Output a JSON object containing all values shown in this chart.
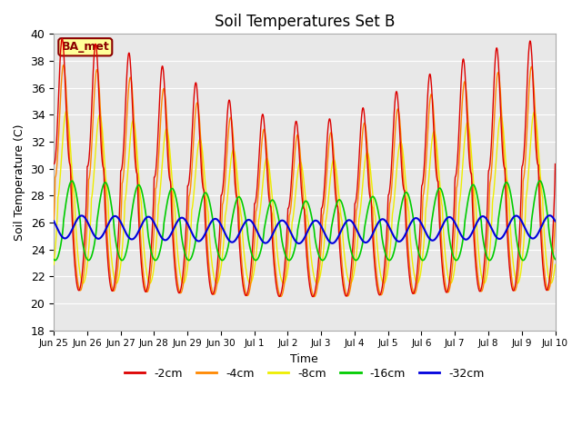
{
  "title": "Soil Temperatures Set B",
  "xlabel": "Time",
  "ylabel": "Soil Temperature (C)",
  "ylim": [
    18,
    40
  ],
  "yticks": [
    18,
    20,
    22,
    24,
    26,
    28,
    30,
    32,
    34,
    36,
    38,
    40
  ],
  "legend_labels": [
    "-2cm",
    "-4cm",
    "-8cm",
    "-16cm",
    "-32cm"
  ],
  "legend_colors": [
    "#dd0000",
    "#ff8800",
    "#eeee00",
    "#00cc00",
    "#0000dd"
  ],
  "line_widths": [
    1.0,
    1.0,
    1.0,
    1.2,
    1.5
  ],
  "annotation_text": "BA_met",
  "annotation_color": "#8b0000",
  "annotation_bg": "#ffff99",
  "xtick_labels": [
    "Jun 25",
    "Jun 26",
    "Jun 27",
    "Jun 28",
    "Jun 29",
    "Jun 30",
    "Jul 1",
    "Jul 2",
    "Jul 3",
    "Jul 4",
    "Jul 5",
    "Jul 6",
    "Jul 7",
    "Jul 8",
    "Jul 9",
    "Jul 10"
  ]
}
